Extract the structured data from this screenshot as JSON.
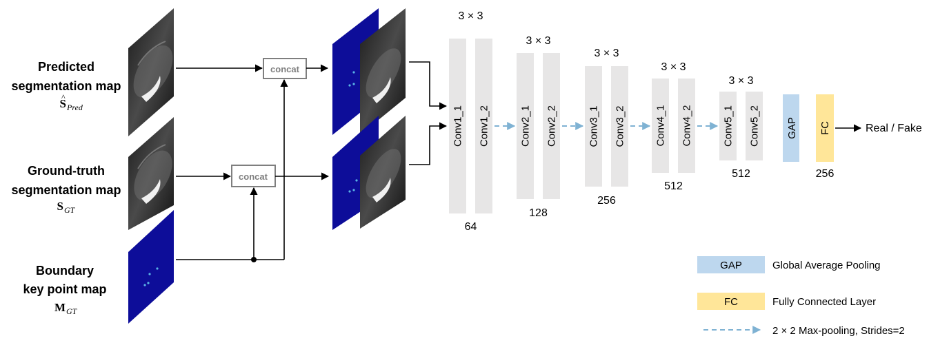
{
  "inputs": {
    "predicted": {
      "line1": "Predicted",
      "line2": "segmentation map",
      "symbol": "S",
      "subscript": "Pred"
    },
    "groundtruth": {
      "line1": "Ground-truth",
      "line2": "segmentation map",
      "symbol": "S",
      "subscript": "GT"
    },
    "boundary": {
      "line1": "Boundary",
      "line2": "key point map",
      "symbol": "M",
      "subscript": "GT"
    }
  },
  "concat_label": "concat",
  "blocks": [
    {
      "kernel": "3 × 3",
      "convs": [
        "Conv1_1",
        "Conv1_2"
      ],
      "channels": "64"
    },
    {
      "kernel": "3 × 3",
      "convs": [
        "Conv2_1",
        "Conv2_2"
      ],
      "channels": "128"
    },
    {
      "kernel": "3 × 3",
      "convs": [
        "Conv3_1",
        "Conv3_2"
      ],
      "channels": "256"
    },
    {
      "kernel": "3 × 3",
      "convs": [
        "Conv4_1",
        "Conv4_2"
      ],
      "channels": "512"
    },
    {
      "kernel": "3 × 3",
      "convs": [
        "Conv5_1",
        "Conv5_2"
      ],
      "channels": "512"
    }
  ],
  "gap": {
    "label": "GAP",
    "color": "#bdd7ee"
  },
  "fc": {
    "label": "FC",
    "channels": "256",
    "color": "#ffe699"
  },
  "output": "Real / Fake",
  "conv_color": "#e7e6e6",
  "map_color": "#0d0d99",
  "legend": {
    "gap": {
      "key": "GAP",
      "text": "Global Average Pooling"
    },
    "fc": {
      "key": "FC",
      "text": "Fully Connected Layer"
    },
    "pool": {
      "text": "2 × 2 Max-pooling, Strides=2",
      "color": "#7fb2d3"
    }
  }
}
